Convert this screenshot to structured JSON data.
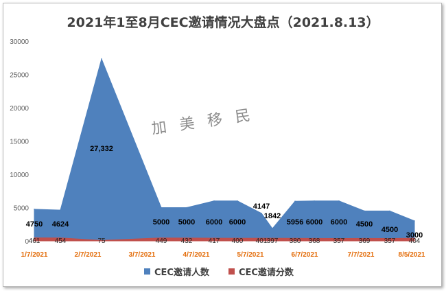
{
  "title": "2021年1至8月CEC邀请情况大盘点（2021.8.13）",
  "watermark": "加 美 移 民",
  "chart_data": {
    "type": "area",
    "title": "2021年1至8月CEC邀请情况大盘点（2021.8.13）",
    "ylim": [
      0,
      30000
    ],
    "yticks": [
      0,
      5000,
      10000,
      15000,
      20000,
      25000,
      30000
    ],
    "x_tick_labels": [
      "1/7/2021",
      "2/7/2021",
      "3/7/2021",
      "4/7/2021",
      "5/7/2021",
      "6/7/2021",
      "7/7/2021",
      "8/5/2021"
    ],
    "grid": false,
    "legend_position": "bottom",
    "series": [
      {
        "name": "CEC邀请人数",
        "color": "#4f81bd",
        "values": [
          4750,
          4624,
          27332,
          5000,
          5000,
          6000,
          6000,
          4147,
          1842,
          5956,
          6000,
          6000,
          4500,
          4500,
          3000
        ],
        "labels": [
          "4750",
          "4624",
          "27,332",
          "5000",
          "5000",
          "6000",
          "6000",
          "4147",
          "1842",
          "5956",
          "6000",
          "6000",
          "4500",
          "4500",
          "3000"
        ]
      },
      {
        "name": "CEC邀请分数",
        "color": "#c0504d",
        "values": [
          461,
          454,
          75,
          449,
          432,
          417,
          400,
          401,
          397,
          380,
          368,
          357,
          369,
          357,
          404
        ],
        "labels": [
          "461",
          "454",
          "75",
          "449",
          "432",
          "417",
          "400",
          "401",
          "397",
          "380",
          "368",
          "357",
          "369",
          "357",
          "404"
        ]
      }
    ]
  }
}
